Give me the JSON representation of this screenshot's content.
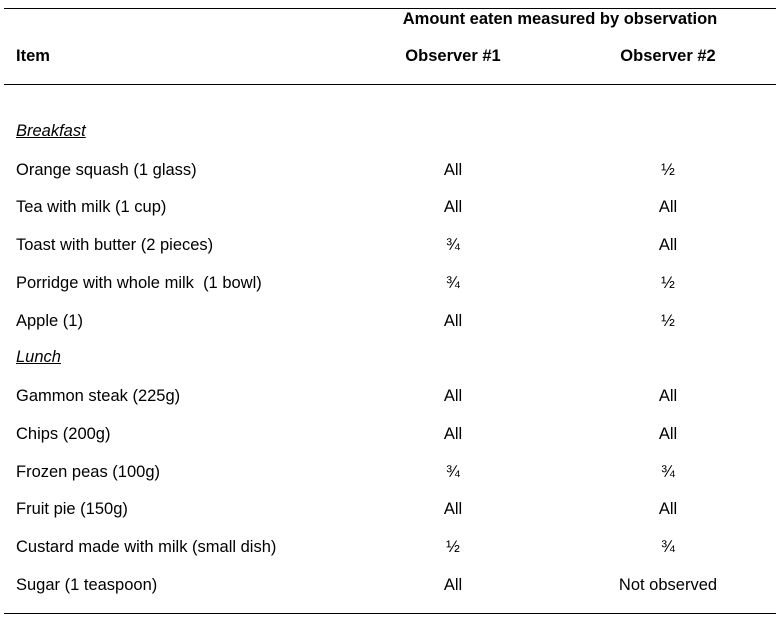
{
  "header": {
    "group_title": "Amount eaten measured by observation",
    "item_label": "Item",
    "observer1_label": "Observer #1",
    "observer2_label": "Observer #2"
  },
  "sections": [
    {
      "title": "Breakfast",
      "rows": [
        {
          "item": "Orange squash (1 glass)",
          "obs1": "All",
          "obs2": "½"
        },
        {
          "item": "Tea with milk (1 cup)",
          "obs1": "All",
          "obs2": "All"
        },
        {
          "item": "Toast with butter (2 pieces)",
          "obs1": "¾",
          "obs2": "All"
        },
        {
          "item": "Porridge with whole milk  (1 bowl)",
          "obs1": "¾",
          "obs2": "½"
        },
        {
          "item": "Apple (1)",
          "obs1": "All",
          "obs2": "½"
        }
      ]
    },
    {
      "title": "Lunch",
      "rows": [
        {
          "item": "Gammon steak (225g)",
          "obs1": "All",
          "obs2": "All"
        },
        {
          "item": "Chips (200g)",
          "obs1": "All",
          "obs2": "All"
        },
        {
          "item": "Frozen peas (100g)",
          "obs1": "¾",
          "obs2": "¾"
        },
        {
          "item": "Fruit pie (150g)",
          "obs1": "All",
          "obs2": "All"
        },
        {
          "item": "Custard made with milk (small dish)",
          "obs1": "½",
          "obs2": "¾"
        },
        {
          "item": "Sugar (1 teaspoon)",
          "obs1": "All",
          "obs2": "Not observed"
        }
      ]
    }
  ]
}
